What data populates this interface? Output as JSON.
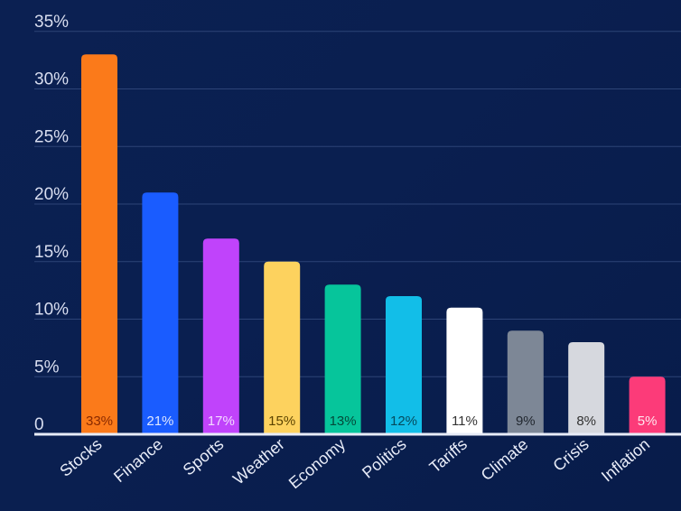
{
  "chart_data": {
    "type": "bar",
    "categories": [
      "Stocks",
      "Finance",
      "Sports",
      "Weather",
      "Economy",
      "Politics",
      "Tariffs",
      "Climate",
      "Crisis",
      "Inflation"
    ],
    "values": [
      33,
      21,
      17,
      15,
      13,
      12,
      11,
      9,
      8,
      5
    ],
    "data_labels": [
      "33%",
      "21%",
      "17%",
      "15%",
      "13%",
      "12%",
      "11%",
      "9%",
      "8%",
      "5%"
    ],
    "colors": [
      "#fb7a1a",
      "#1a5cff",
      "#c043fb",
      "#fdd25e",
      "#06c59b",
      "#12bee8",
      "#ffffff",
      "#7d8796",
      "#d6d8de",
      "#fc3b79"
    ],
    "label_colors": [
      "#8a2a00",
      "#dfe7ff",
      "#f3dcff",
      "#5a4300",
      "#04493a",
      "#064a5c",
      "#333333",
      "#222830",
      "#333333",
      "#ffe6ee"
    ],
    "y_ticks": [
      "0",
      "5%",
      "10%",
      "15%",
      "20%",
      "25%",
      "30%",
      "35%"
    ],
    "ylim": [
      0,
      35
    ],
    "grid": true,
    "title": "",
    "xlabel": "",
    "ylabel": ""
  }
}
